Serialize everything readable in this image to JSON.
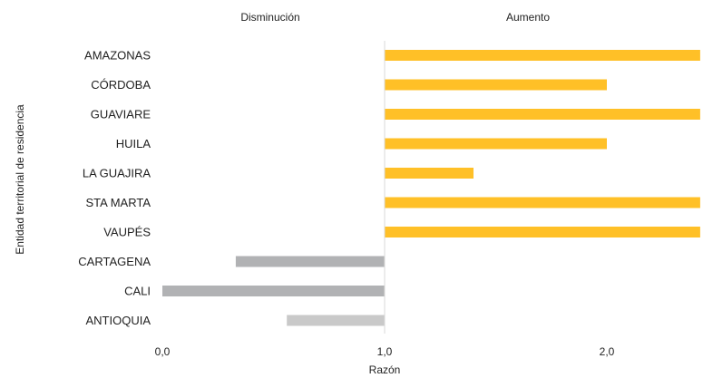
{
  "chart_data": {
    "type": "bar",
    "orientation": "horizontal",
    "reference_value": 1.0,
    "xlabel": "Razón",
    "ylabel": "Entidad territorial de residencia",
    "side_labels": {
      "left": "Disminución",
      "right": "Aumento"
    },
    "xlim": [
      0,
      2.42
    ],
    "xticks": [
      0,
      1,
      2
    ],
    "xtick_labels": [
      "0,0",
      "1,0",
      "2,0"
    ],
    "grid": false,
    "legend": "none",
    "categories": [
      "AMAZONAS",
      "CÓRDOBA",
      "GUAVIARE",
      "HUILA",
      "LA GUAJIRA",
      "STA MARTA",
      "VAUPÉS",
      "CARTAGENA",
      "CALI",
      "ANTIOQUIA"
    ],
    "values": [
      2.42,
      2.0,
      2.42,
      2.0,
      1.4,
      2.42,
      2.42,
      0.33,
      0.0,
      0.56
    ],
    "colors": [
      "#FFC027",
      "#FFC027",
      "#FFC027",
      "#FFC027",
      "#FFC027",
      "#FFC027",
      "#FFC027",
      "#B1B2B4",
      "#B1B2B4",
      "#C9C9C9"
    ],
    "reference_line_color": "#D9D9D9"
  }
}
